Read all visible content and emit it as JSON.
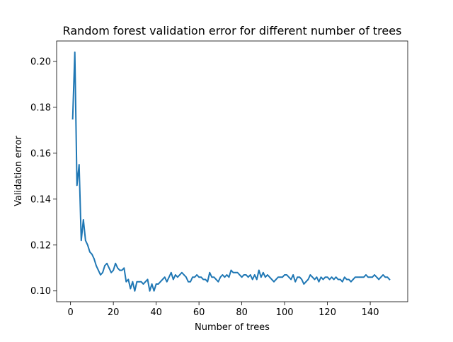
{
  "chart_data": {
    "type": "line",
    "title": "Random forest validation error for different number of trees",
    "xlabel": "Number of trees",
    "ylabel": "Validation error",
    "xlim": [
      -6.5,
      157.5
    ],
    "ylim": [
      0.0953,
      0.2089
    ],
    "grid": false,
    "x_ticks": [
      0,
      20,
      40,
      60,
      80,
      100,
      120,
      140
    ],
    "x_tick_labels": [
      "0",
      "20",
      "40",
      "60",
      "80",
      "100",
      "120",
      "140"
    ],
    "y_ticks": [
      0.1,
      0.12,
      0.14,
      0.16,
      0.18,
      0.2
    ],
    "y_tick_labels": [
      "0.10",
      "0.12",
      "0.14",
      "0.16",
      "0.18",
      "0.20"
    ],
    "series": [
      {
        "color": "#1f77b4",
        "x": [
          1,
          2,
          3,
          4,
          5,
          6,
          7,
          8,
          9,
          10,
          11,
          12,
          13,
          14,
          15,
          16,
          17,
          18,
          19,
          20,
          21,
          22,
          23,
          24,
          25,
          26,
          27,
          28,
          29,
          30,
          31,
          32,
          33,
          34,
          35,
          36,
          37,
          38,
          39,
          40,
          41,
          42,
          43,
          44,
          45,
          46,
          47,
          48,
          49,
          50,
          51,
          52,
          53,
          54,
          55,
          56,
          57,
          58,
          59,
          60,
          61,
          62,
          63,
          64,
          65,
          66,
          67,
          68,
          69,
          70,
          71,
          72,
          73,
          74,
          75,
          76,
          77,
          78,
          79,
          80,
          81,
          82,
          83,
          84,
          85,
          86,
          87,
          88,
          89,
          90,
          91,
          92,
          93,
          94,
          95,
          96,
          97,
          98,
          99,
          100,
          101,
          102,
          103,
          104,
          105,
          106,
          107,
          108,
          109,
          110,
          111,
          112,
          113,
          114,
          115,
          116,
          117,
          118,
          119,
          120,
          121,
          122,
          123,
          124,
          125,
          126,
          127,
          128,
          129,
          130,
          131,
          132,
          133,
          134,
          135,
          136,
          137,
          138,
          139,
          140,
          141,
          142,
          143,
          144,
          145,
          146,
          147,
          148,
          149
        ],
        "y": [
          0.175,
          0.204,
          0.146,
          0.155,
          0.122,
          0.131,
          0.122,
          0.12,
          0.117,
          0.116,
          0.114,
          0.111,
          0.109,
          0.107,
          0.108,
          0.111,
          0.112,
          0.11,
          0.108,
          0.109,
          0.112,
          0.11,
          0.109,
          0.109,
          0.11,
          0.104,
          0.105,
          0.101,
          0.104,
          0.1,
          0.104,
          0.104,
          0.104,
          0.103,
          0.104,
          0.105,
          0.1,
          0.103,
          0.1,
          0.103,
          0.103,
          0.104,
          0.105,
          0.106,
          0.104,
          0.106,
          0.108,
          0.105,
          0.107,
          0.106,
          0.107,
          0.108,
          0.107,
          0.106,
          0.104,
          0.104,
          0.106,
          0.106,
          0.107,
          0.106,
          0.106,
          0.105,
          0.105,
          0.104,
          0.108,
          0.106,
          0.106,
          0.105,
          0.104,
          0.106,
          0.107,
          0.106,
          0.107,
          0.106,
          0.109,
          0.108,
          0.108,
          0.108,
          0.107,
          0.106,
          0.107,
          0.107,
          0.106,
          0.107,
          0.105,
          0.107,
          0.105,
          0.109,
          0.106,
          0.108,
          0.106,
          0.107,
          0.106,
          0.105,
          0.104,
          0.105,
          0.106,
          0.106,
          0.106,
          0.107,
          0.107,
          0.106,
          0.105,
          0.107,
          0.104,
          0.106,
          0.106,
          0.105,
          0.103,
          0.104,
          0.105,
          0.107,
          0.106,
          0.105,
          0.106,
          0.104,
          0.106,
          0.105,
          0.106,
          0.106,
          0.105,
          0.106,
          0.105,
          0.106,
          0.105,
          0.105,
          0.104,
          0.106,
          0.105,
          0.105,
          0.104,
          0.105,
          0.106,
          0.106,
          0.106,
          0.106,
          0.106,
          0.107,
          0.106,
          0.106,
          0.106,
          0.107,
          0.106,
          0.105,
          0.106,
          0.107,
          0.106,
          0.106,
          0.105
        ]
      }
    ]
  }
}
